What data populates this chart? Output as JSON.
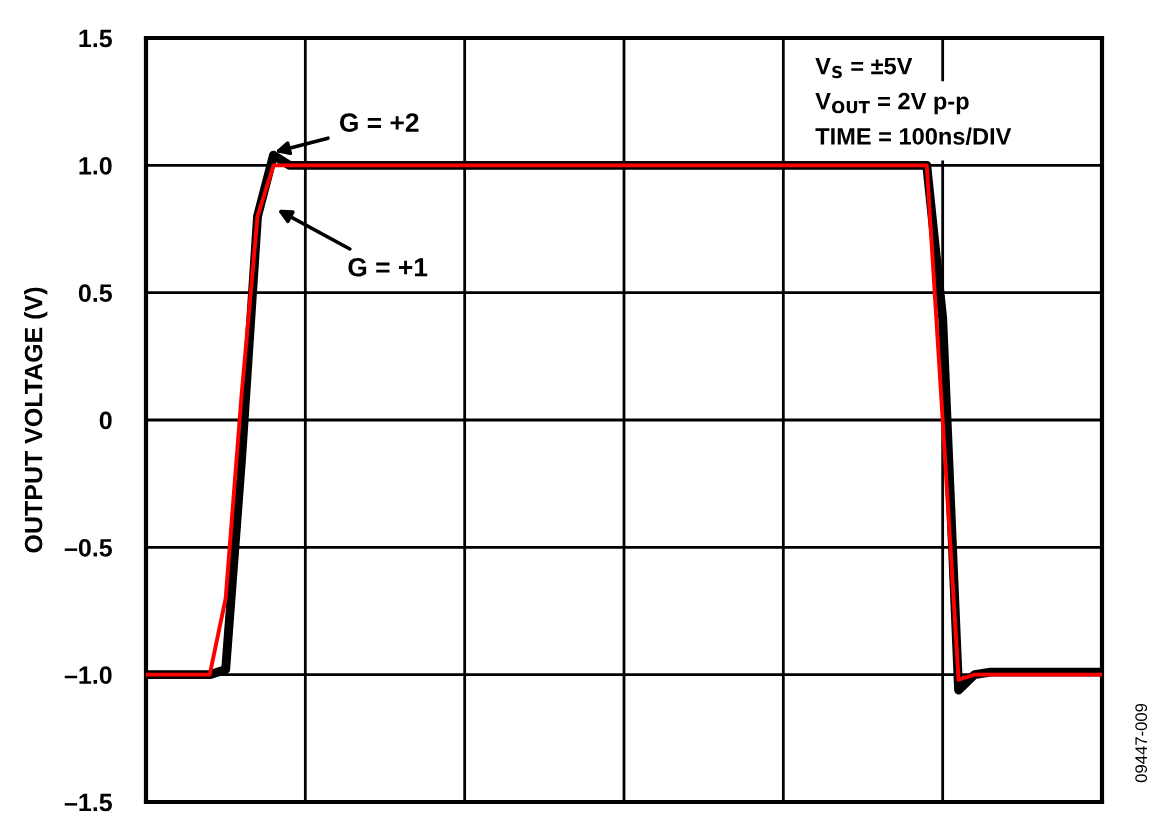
{
  "chart_data": {
    "type": "line",
    "ylabel": "OUTPUT VOLTAGE (V)",
    "categories": [
      null,
      null,
      null,
      null,
      null,
      null,
      null,
      null,
      null,
      null,
      null,
      null,
      null,
      null,
      null,
      null,
      null,
      null,
      null,
      null,
      null,
      null,
      null,
      null,
      null,
      null,
      null,
      null,
      null,
      null,
      null,
      null,
      null,
      null,
      null,
      null,
      null,
      null,
      null,
      null,
      null,
      null,
      null,
      null,
      null,
      null,
      null,
      null,
      null,
      null,
      null,
      null,
      null,
      null,
      null,
      null,
      null,
      null,
      null,
      null,
      null
    ],
    "ylim": [
      -1.5,
      1.5
    ],
    "yticks": [
      {
        "value": -1.5,
        "label": "–1.5"
      },
      {
        "value": -1.0,
        "label": "–1.0"
      },
      {
        "value": -0.5,
        "label": "–0.5"
      },
      {
        "value": 0,
        "label": "0"
      },
      {
        "value": 0.5,
        "label": "0.5"
      },
      {
        "value": 1.0,
        "label": "1.0"
      },
      {
        "value": 1.5,
        "label": "1.5"
      }
    ],
    "grid": true,
    "legend": false,
    "marker": "none",
    "line_style": "solid",
    "series": [
      {
        "color": "#ff0000",
        "values": [
          -1.0,
          -1.0,
          -1.0,
          -1.0,
          -1.0,
          -0.7,
          0.1,
          0.8,
          1.0,
          1.0,
          1.0,
          1.0,
          1.0,
          1.0,
          1.0,
          1.0,
          1.0,
          1.0,
          1.0,
          1.0,
          1.0,
          1.0,
          1.0,
          1.0,
          1.0,
          1.0,
          1.0,
          1.0,
          1.0,
          1.0,
          1.0,
          1.0,
          1.0,
          1.0,
          1.0,
          1.0,
          1.0,
          1.0,
          1.0,
          1.0,
          1.0,
          1.0,
          1.0,
          1.0,
          1.0,
          1.0,
          1.0,
          1.0,
          1.0,
          1.0,
          0.0,
          -1.02,
          -1.0,
          -1.0,
          -1.0,
          -1.0,
          -1.0,
          -1.0,
          -1.0,
          -1.0,
          -1.0
        ]
      },
      {
        "color": "#000000",
        "values": [
          -1.0,
          -1.0,
          -1.0,
          -1.0,
          -1.0,
          -0.98,
          -0.15,
          0.8,
          1.04,
          1.0,
          1.0,
          1.0,
          1.0,
          1.0,
          1.0,
          1.0,
          1.0,
          1.0,
          1.0,
          1.0,
          1.0,
          1.0,
          1.0,
          1.0,
          1.0,
          1.0,
          1.0,
          1.0,
          1.0,
          1.0,
          1.0,
          1.0,
          1.0,
          1.0,
          1.0,
          1.0,
          1.0,
          1.0,
          1.0,
          1.0,
          1.0,
          1.0,
          1.0,
          1.0,
          1.0,
          1.0,
          1.0,
          1.0,
          1.0,
          1.0,
          0.4,
          -1.06,
          -1.0,
          -0.99,
          -0.99,
          -0.99,
          -0.99,
          -0.99,
          -0.99,
          -0.99,
          -0.99
        ]
      }
    ],
    "annotations": [
      {
        "text": "G = +2",
        "y": 1.05
      },
      "G = +1",
      "V$_{S}$ = ±5V",
      "V$_{OUT}$ = 2V p-p",
      "TIME = 100ns/DIV",
      "09447-009"
    ]
  }
}
